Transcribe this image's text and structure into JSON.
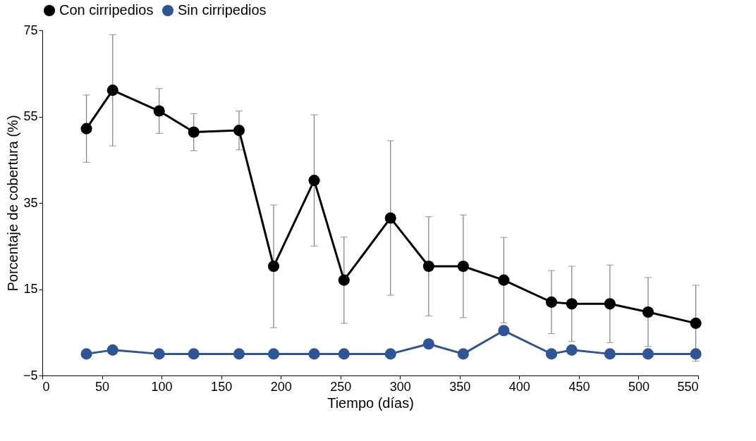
{
  "chart_data": {
    "type": "line",
    "xlabel": "Tiempo (días)",
    "ylabel": "Porcentaje de cobertura (%)",
    "x": [
      37,
      59,
      98,
      127,
      165,
      194,
      228,
      253,
      292,
      324,
      353,
      387,
      427,
      444,
      476,
      508,
      548
    ],
    "series": [
      {
        "name": "Con cirripedios",
        "color": "#000000",
        "values": [
          52.2,
          61.1,
          56.3,
          51.4,
          51.8,
          20.3,
          40.2,
          17.1,
          31.5,
          20.3,
          20.3,
          17.1,
          12.0,
          11.6,
          11.6,
          9.7,
          7.1
        ],
        "errors": [
          7.8,
          12.9,
          5.2,
          4.3,
          4.5,
          14.2,
          15.2,
          10,
          17.9,
          11.5,
          11.9,
          9.9,
          7.3,
          8.7,
          9,
          8,
          8.8
        ]
      },
      {
        "name": "Sin cirripedios",
        "color": "#2f5597",
        "values": [
          0,
          0.9,
          0,
          0,
          0,
          0,
          0,
          0,
          0,
          2.3,
          0,
          5.4,
          0,
          0.9,
          0,
          0,
          0
        ]
      }
    ],
    "xlim": [
      0,
      550
    ],
    "xticks": [
      0,
      50,
      100,
      150,
      200,
      250,
      300,
      350,
      400,
      450,
      500,
      550
    ],
    "ylim": [
      -5,
      75
    ],
    "yticks": [
      -5,
      15,
      35,
      55,
      75
    ],
    "grid": false,
    "legend": "top",
    "marker": "circle",
    "line_style": "solid"
  }
}
